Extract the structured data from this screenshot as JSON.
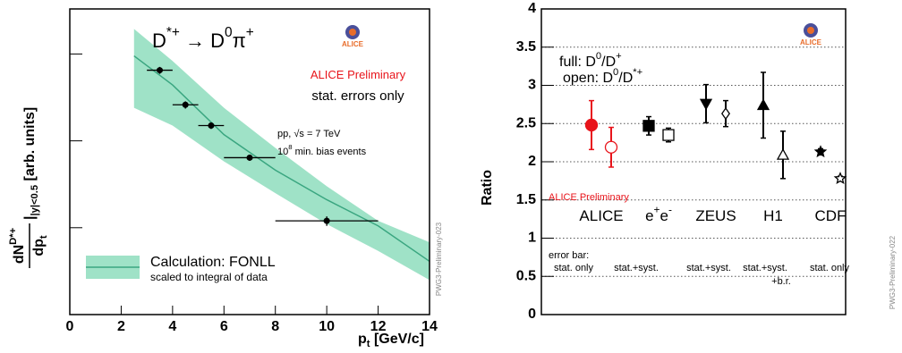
{
  "chart_data": [
    {
      "type": "spectrum",
      "title": [
        {
          "text": "D"
        },
        {
          "text": "*+",
          "pos": "sup"
        },
        {
          "text": " → D"
        },
        {
          "text": "0",
          "pos": "sup"
        },
        {
          "text": "π"
        },
        {
          "text": "+",
          "pos": "sup"
        }
      ],
      "ylabel": {
        "numerator": [
          {
            "text": "dN"
          },
          {
            "text": "D*+",
            "pos": "sup"
          }
        ],
        "denominator": [
          {
            "text": "dp"
          },
          {
            "text": "t",
            "pos": "sub"
          }
        ],
        "rest": [
          {
            "text": "|"
          },
          {
            "text": "|y|<0.5",
            "pos": "sub"
          },
          {
            "text": " [arb. units]"
          }
        ]
      },
      "xlabel": [
        {
          "text": "p"
        },
        {
          "text": "t",
          "pos": "sub"
        },
        {
          "text": " [GeV/c]"
        }
      ],
      "xlim": [
        0,
        14
      ],
      "xticks": [
        0,
        2,
        4,
        6,
        8,
        10,
        12,
        14
      ],
      "yscale": "log",
      "ylim": [
        0.001,
        3.3
      ],
      "yticks": [
        0.01,
        0.1,
        1
      ],
      "band": {
        "name": "Calculation: FONLL",
        "note": "scaled to integral of data",
        "color": "#7fd8b4",
        "line_color": "#3aa680",
        "x": [
          2.5,
          4,
          6,
          8,
          10,
          12,
          14
        ],
        "values": [
          0.95,
          0.44,
          0.118,
          0.046,
          0.021,
          0.0105,
          0.0041
        ],
        "upper": [
          1.94,
          0.83,
          0.24,
          0.083,
          0.03,
          0.012,
          0.0068
        ],
        "lower": [
          0.24,
          0.15,
          0.058,
          0.025,
          0.011,
          0.0054,
          0.0025
        ]
      },
      "points": {
        "color": "#000000",
        "x": [
          3.5,
          4.5,
          5.5,
          7,
          10
        ],
        "xerr": [
          0.5,
          0.5,
          0.5,
          1,
          2
        ],
        "values": [
          0.65,
          0.26,
          0.15,
          0.064,
          0.012
        ],
        "errors": [
          0.06,
          0.025,
          0.013,
          0.005,
          0.0015
        ]
      },
      "annotations": [
        [
          {
            "text": "ALICE Preliminary"
          }
        ],
        [
          {
            "text": "stat. errors only"
          }
        ],
        [
          {
            "text": "pp, √s = 7 TeV"
          }
        ],
        [
          {
            "text": "10"
          },
          {
            "text": "8",
            "pos": "sup"
          },
          {
            "text": " min. bias events"
          }
        ]
      ],
      "annotation_colors": [
        "#e8141b",
        "#000000",
        "#000000",
        "#000000"
      ],
      "logo_text": "ALICE",
      "watermark": "PWG3-Preliminary-023"
    },
    {
      "type": "ratio",
      "ylabel": "Ratio",
      "ylim": [
        0,
        4
      ],
      "yticks": [
        0,
        0.5,
        1,
        1.5,
        2,
        2.5,
        3,
        3.5,
        4
      ],
      "grid": true,
      "categories": [
        [
          {
            "text": "ALICE"
          }
        ],
        [
          {
            "text": "e"
          },
          {
            "text": "+",
            "pos": "sup"
          },
          {
            "text": "e"
          },
          {
            "text": "-",
            "pos": "sup"
          }
        ],
        [
          {
            "text": "ZEUS"
          }
        ],
        [
          {
            "text": "H1"
          }
        ],
        [
          {
            "text": "CDF"
          }
        ]
      ],
      "series": [
        {
          "name": [
            {
              "text": "full: D"
            },
            {
              "text": "0",
              "pos": "sup"
            },
            {
              "text": "/D"
            },
            {
              "text": "+",
              "pos": "sup"
            }
          ],
          "filled": true,
          "markers": [
            "circle",
            "square",
            "triangle-down",
            "triangle-up",
            "star"
          ],
          "colors": [
            "#e8141b",
            "#000000",
            "#000000",
            "#000000",
            "#000000"
          ],
          "values": [
            2.48,
            2.47,
            2.76,
            2.74,
            2.13
          ],
          "errors": [
            0.32,
            0.12,
            0.25,
            0.43,
            0.04
          ]
        },
        {
          "name": [
            {
              "text": "open: D"
            },
            {
              "text": "0",
              "pos": "sup"
            },
            {
              "text": "/D"
            },
            {
              "text": "*+",
              "pos": "sup"
            }
          ],
          "filled": false,
          "markers": [
            "circle",
            "square",
            "diamond",
            "triangle-up",
            "star"
          ],
          "colors": [
            "#e8141b",
            "#000000",
            "#000000",
            "#000000",
            "#000000"
          ],
          "values": [
            2.19,
            2.35,
            2.63,
            2.09,
            1.78
          ],
          "errors": [
            0.26,
            0.09,
            0.17,
            0.31,
            0.03
          ]
        }
      ],
      "annotation": "ALICE Preliminary",
      "annotation_color": "#e8141b",
      "error_bar_label": "error bar:",
      "error_bar_notes": [
        [
          "stat. only"
        ],
        [
          "stat.+syst."
        ],
        [
          "stat.+syst."
        ],
        [
          "stat.+syst.",
          "+b.r."
        ],
        [
          "stat. only"
        ]
      ],
      "logo_text": "ALICE",
      "watermark": "PWG3-Preliminary-022"
    }
  ]
}
